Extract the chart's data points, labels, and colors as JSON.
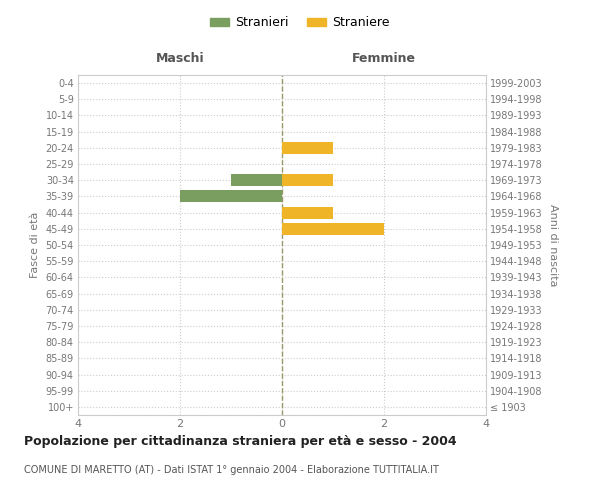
{
  "age_groups": [
    "100+",
    "95-99",
    "90-94",
    "85-89",
    "80-84",
    "75-79",
    "70-74",
    "65-69",
    "60-64",
    "55-59",
    "50-54",
    "45-49",
    "40-44",
    "35-39",
    "30-34",
    "25-29",
    "20-24",
    "15-19",
    "10-14",
    "5-9",
    "0-4"
  ],
  "birth_years": [
    "≤ 1903",
    "1904-1908",
    "1909-1913",
    "1914-1918",
    "1919-1923",
    "1924-1928",
    "1929-1933",
    "1934-1938",
    "1939-1943",
    "1944-1948",
    "1949-1953",
    "1954-1958",
    "1959-1963",
    "1964-1968",
    "1969-1973",
    "1974-1978",
    "1979-1983",
    "1984-1988",
    "1989-1993",
    "1994-1998",
    "1999-2003"
  ],
  "stranieri": [
    0,
    0,
    0,
    0,
    0,
    0,
    0,
    0,
    0,
    0,
    0,
    0,
    0,
    2,
    1,
    0,
    0,
    0,
    0,
    0,
    0
  ],
  "straniere": [
    0,
    0,
    0,
    0,
    0,
    0,
    0,
    0,
    0,
    0,
    0,
    2,
    1,
    0,
    1,
    0,
    1,
    0,
    0,
    0,
    0
  ],
  "color_stranieri": "#7a9e5f",
  "color_straniere": "#f0b429",
  "xlim": 4,
  "xlabel_left": "Maschi",
  "xlabel_right": "Femmine",
  "ylabel_left": "Fasce di età",
  "ylabel_right": "Anni di nascita",
  "title": "Popolazione per cittadinanza straniera per età e sesso - 2004",
  "subtitle": "COMUNE DI MARETTO (AT) - Dati ISTAT 1° gennaio 2004 - Elaborazione TUTTITALIA.IT",
  "legend_stranieri": "Stranieri",
  "legend_straniere": "Straniere",
  "background_color": "#ffffff",
  "grid_color": "#cccccc",
  "bar_height": 0.75,
  "vline_color": "#999966"
}
